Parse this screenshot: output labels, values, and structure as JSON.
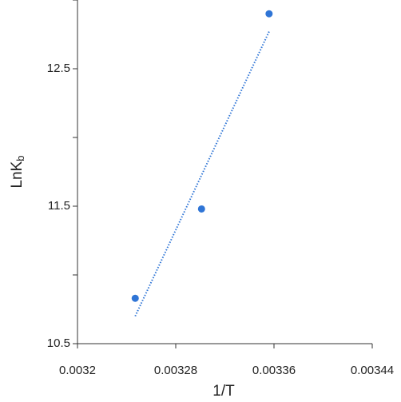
{
  "chart_data": {
    "type": "scatter",
    "xlabel": "1/T",
    "ylabel": {
      "text": "LnK",
      "subscript": "b"
    },
    "series": [
      {
        "color": "#2f75d6",
        "x": [
          0.003247,
          0.003301,
          0.003356
        ],
        "values": [
          10.83,
          11.48,
          12.9
        ]
      }
    ],
    "trendline": {
      "color": "#2f75d6",
      "x": [
        0.003247,
        0.003356
      ],
      "values": [
        10.7,
        12.77
      ]
    },
    "xlim": [
      0.0032,
      0.00344
    ],
    "xticks": [
      0.0032,
      0.00328,
      0.00336,
      0.00344
    ],
    "ylim": [
      10.5,
      13
    ],
    "yticks": [
      10.5,
      11.5,
      12.5
    ],
    "yminor": [
      11,
      12,
      13
    ],
    "grid": false
  }
}
